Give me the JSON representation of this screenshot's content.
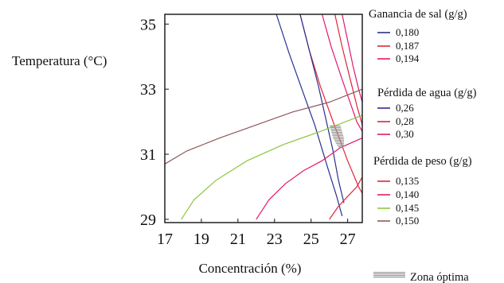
{
  "chart_data": {
    "type": "contour",
    "xlabel": "Concentración (%)",
    "ylabel": "Temperatura (°C)",
    "xlim": [
      17,
      27.8
    ],
    "ylim": [
      28.9,
      35.3
    ],
    "x_ticks": [
      "17",
      "19",
      "21",
      "23",
      "25",
      "27"
    ],
    "y_ticks": [
      "29",
      "31",
      "33",
      "35"
    ],
    "x_tick_values": [
      17,
      19,
      21,
      23,
      25,
      27
    ],
    "y_tick_values": [
      29,
      31,
      33,
      35
    ],
    "groups": [
      {
        "title": "Ganancia de sal (g/g)",
        "series": [
          {
            "name": "0,180",
            "color": "#2b2f8f",
            "points": [
              [
                23.1,
                35.3
              ],
              [
                23.8,
                34.1
              ],
              [
                24.5,
                33.0
              ],
              [
                25.2,
                31.9
              ],
              [
                25.9,
                30.6
              ],
              [
                26.4,
                29.7
              ],
              [
                26.7,
                29.1
              ]
            ]
          },
          {
            "name": "0,187",
            "color": "#e0243a",
            "points": [
              [
                24.4,
                35.3
              ],
              [
                24.9,
                34.2
              ],
              [
                25.5,
                33.1
              ],
              [
                26.2,
                32.0
              ],
              [
                27.0,
                30.8
              ],
              [
                27.6,
                30.0
              ],
              [
                27.8,
                29.8
              ]
            ]
          },
          {
            "name": "0,194",
            "color": "#e2186f",
            "points": [
              [
                25.6,
                35.3
              ],
              [
                26.1,
                34.3
              ],
              [
                26.7,
                33.3
              ],
              [
                27.5,
                32.0
              ],
              [
                27.8,
                31.7
              ]
            ]
          }
        ]
      },
      {
        "title": "Pérdida de agua (g/g)",
        "series": [
          {
            "name": "0,26",
            "color": "#2b2f8f",
            "points": [
              [
                24.4,
                35.3
              ],
              [
                24.9,
                34.2
              ],
              [
                25.4,
                33.1
              ],
              [
                25.8,
                32.1
              ],
              [
                26.2,
                31.1
              ],
              [
                26.5,
                30.2
              ],
              [
                26.8,
                29.5
              ]
            ]
          },
          {
            "name": "0,28",
            "color": "#e0243a",
            "points": [
              [
                26.3,
                35.3
              ],
              [
                26.7,
                34.3
              ],
              [
                27.1,
                33.4
              ],
              [
                27.5,
                32.5
              ],
              [
                27.8,
                31.9
              ]
            ]
          },
          {
            "name": "0,30",
            "color": "#e2186f",
            "points": [
              [
                26.7,
                35.3
              ],
              [
                27.0,
                34.5
              ],
              [
                27.3,
                33.7
              ],
              [
                27.6,
                33.0
              ],
              [
                27.8,
                32.6
              ]
            ]
          }
        ]
      },
      {
        "title": "Pérdida de peso (g/g)",
        "series": [
          {
            "name": "0,135",
            "color": "#e0243a",
            "points": [
              [
                26.0,
                29.0
              ],
              [
                26.5,
                29.4
              ],
              [
                27.0,
                29.7
              ],
              [
                27.5,
                30.0
              ],
              [
                27.8,
                30.3
              ]
            ]
          },
          {
            "name": "0,140",
            "color": "#e2186f",
            "points": [
              [
                22.0,
                29.0
              ],
              [
                22.7,
                29.6
              ],
              [
                23.6,
                30.1
              ],
              [
                24.6,
                30.5
              ],
              [
                25.6,
                30.8
              ],
              [
                26.6,
                31.2
              ],
              [
                27.8,
                31.5
              ]
            ]
          },
          {
            "name": "0,145",
            "color": "#8cc63f",
            "points": [
              [
                17.9,
                29.0
              ],
              [
                18.6,
                29.6
              ],
              [
                19.8,
                30.2
              ],
              [
                21.5,
                30.8
              ],
              [
                23.5,
                31.3
              ],
              [
                25.5,
                31.7
              ],
              [
                27.8,
                32.2
              ]
            ]
          },
          {
            "name": "0,150",
            "color": "#8a5a5a",
            "points": [
              [
                17.0,
                30.7
              ],
              [
                18.2,
                31.1
              ],
              [
                20.0,
                31.5
              ],
              [
                22.0,
                31.9
              ],
              [
                24.0,
                32.3
              ],
              [
                26.0,
                32.6
              ],
              [
                27.8,
                33.0
              ]
            ]
          }
        ]
      }
    ],
    "optimal_zone": {
      "label": "Zona óptima",
      "color": "#9a9a9a",
      "polygon": [
        [
          26.0,
          31.9
        ],
        [
          26.6,
          31.9
        ],
        [
          26.8,
          31.5
        ],
        [
          26.8,
          31.2
        ],
        [
          26.5,
          31.2
        ],
        [
          26.2,
          31.5
        ]
      ]
    }
  }
}
